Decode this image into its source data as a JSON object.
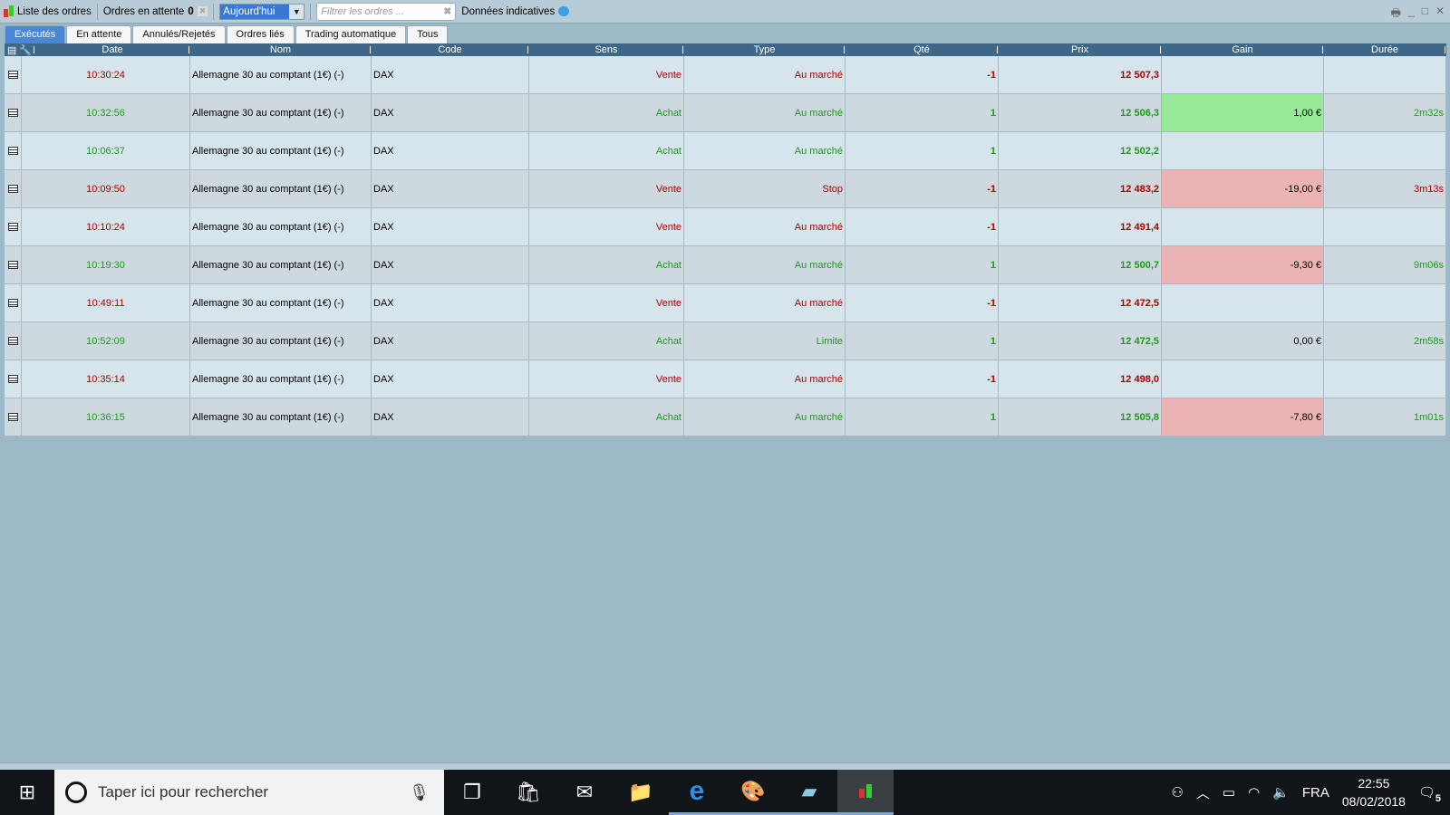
{
  "toolbar": {
    "orders_list": "Liste des ordres",
    "pending_label": "Ordres en attente",
    "pending_count": "0",
    "period": "Aujourd'hui",
    "filter_placeholder": "Filtrer les ordres ...",
    "indicative": "Données indicatives"
  },
  "tabs": [
    "Exécutés",
    "En attente",
    "Annulés/Rejetés",
    "Ordres liés",
    "Trading automatique",
    "Tous"
  ],
  "active_tab": "Exécutés",
  "columns": [
    "Date",
    "Nom",
    "Code",
    "Sens",
    "Type",
    "Qté",
    "Prix",
    "Gain",
    "Durée"
  ],
  "colors": {
    "sell": "#b00000",
    "buy": "#1f9a1f",
    "gain_pos": "#98ea98",
    "gain_neg": "#ebb3b3"
  },
  "rows": [
    {
      "date": "10:30:24",
      "nom": "Allemagne 30 au comptant (1€) (-)",
      "code": "DAX",
      "sens": "Vente",
      "type": "Au marché",
      "qte": "-1",
      "prix": "12 507,3",
      "gain": "",
      "duree": ""
    },
    {
      "date": "10:32:56",
      "nom": "Allemagne 30 au comptant (1€) (-)",
      "code": "DAX",
      "sens": "Achat",
      "type": "Au marché",
      "qte": "1",
      "prix": "12 506,3",
      "gain": "1,00 €",
      "duree": "2m32s"
    },
    {
      "date": "10:06:37",
      "nom": "Allemagne 30 au comptant (1€) (-)",
      "code": "DAX",
      "sens": "Achat",
      "type": "Au marché",
      "qte": "1",
      "prix": "12 502,2",
      "gain": "",
      "duree": ""
    },
    {
      "date": "10:09:50",
      "nom": "Allemagne 30 au comptant (1€) (-)",
      "code": "DAX",
      "sens": "Vente",
      "type": "Stop",
      "qte": "-1",
      "prix": "12 483,2",
      "gain": "-19,00 €",
      "duree": "3m13s"
    },
    {
      "date": "10:10:24",
      "nom": "Allemagne 30 au comptant (1€) (-)",
      "code": "DAX",
      "sens": "Vente",
      "type": "Au marché",
      "qte": "-1",
      "prix": "12 491,4",
      "gain": "",
      "duree": ""
    },
    {
      "date": "10:19:30",
      "nom": "Allemagne 30 au comptant (1€) (-)",
      "code": "DAX",
      "sens": "Achat",
      "type": "Au marché",
      "qte": "1",
      "prix": "12 500,7",
      "gain": "-9,30 €",
      "duree": "9m06s"
    },
    {
      "date": "10:49:11",
      "nom": "Allemagne 30 au comptant (1€) (-)",
      "code": "DAX",
      "sens": "Vente",
      "type": "Au marché",
      "qte": "-1",
      "prix": "12 472,5",
      "gain": "",
      "duree": ""
    },
    {
      "date": "10:52:09",
      "nom": "Allemagne 30 au comptant (1€) (-)",
      "code": "DAX",
      "sens": "Achat",
      "type": "Limite",
      "qte": "1",
      "prix": "12 472,5",
      "gain": "0,00 €",
      "duree": "2m58s"
    },
    {
      "date": "10:35:14",
      "nom": "Allemagne 30 au comptant (1€) (-)",
      "code": "DAX",
      "sens": "Vente",
      "type": "Au marché",
      "qte": "-1",
      "prix": "12 498,0",
      "gain": "",
      "duree": ""
    },
    {
      "date": "10:36:15",
      "nom": "Allemagne 30 au comptant (1€) (-)",
      "code": "DAX",
      "sens": "Achat",
      "type": "Au marché",
      "qte": "1",
      "prix": "12 505,8",
      "gain": "-7,80 €",
      "duree": "1m01s"
    }
  ],
  "taskbar": {
    "search_placeholder": "Taper ici pour rechercher",
    "lang": "FRA",
    "time": "22:55",
    "date": "08/02/2018",
    "notifications": "5"
  }
}
